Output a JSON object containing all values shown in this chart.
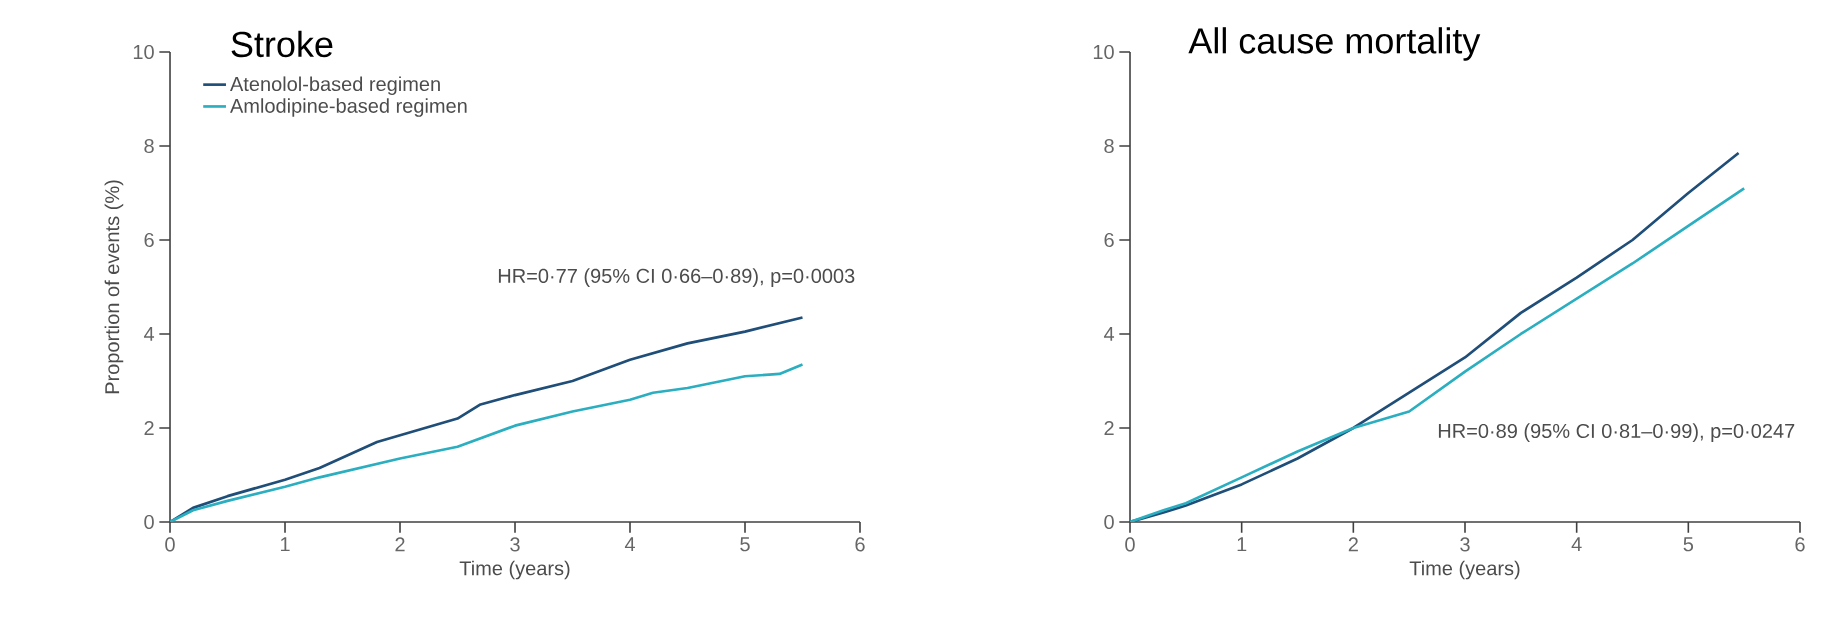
{
  "chart_data": [
    {
      "type": "line",
      "title": "Stroke",
      "ylabel": "Proportion of events (%)",
      "xlabel": "Time (years)",
      "xlim": [
        0,
        6
      ],
      "ylim": [
        0,
        10
      ],
      "xticks": [
        0,
        1,
        2,
        3,
        4,
        5,
        6
      ],
      "yticks": [
        0,
        2,
        4,
        6,
        8,
        10
      ],
      "legend": "top left",
      "marker": "none",
      "line_style": "solid",
      "annotations": [
        "HR=0·77 (95% CI 0·66–0·89), p=0·0003"
      ],
      "series": [
        {
          "name": "Atenolol-based regimen",
          "color": "#1f4e79",
          "x": [
            0,
            0.2,
            0.5,
            1,
            1.3,
            1.8,
            2.5,
            2.7,
            3,
            3.5,
            4,
            4.5,
            5,
            5.5
          ],
          "values": [
            0,
            0.3,
            0.55,
            0.9,
            1.15,
            1.7,
            2.2,
            2.5,
            2.7,
            3.0,
            3.45,
            3.8,
            4.05,
            4.35
          ]
        },
        {
          "name": "Amlodipine-based regimen",
          "color": "#2aaec0",
          "x": [
            0,
            0.2,
            0.5,
            1,
            1.3,
            2,
            2.5,
            3,
            3.5,
            4,
            4.2,
            4.5,
            5,
            5.3,
            5.5
          ],
          "values": [
            0,
            0.25,
            0.45,
            0.75,
            0.95,
            1.35,
            1.6,
            2.05,
            2.35,
            2.6,
            2.75,
            2.85,
            3.1,
            3.15,
            3.35
          ]
        }
      ]
    },
    {
      "type": "line",
      "title": "All cause mortality",
      "xlabel": "Time (years)",
      "xlim": [
        0,
        6
      ],
      "ylim": [
        0,
        10
      ],
      "xticks": [
        0,
        1,
        2,
        3,
        4,
        5,
        6
      ],
      "yticks": [
        0,
        2,
        4,
        6,
        8,
        10
      ],
      "marker": "none",
      "line_style": "solid",
      "annotations": [
        "HR=0·89 (95% CI 0·81–0·99), p=0·0247"
      ],
      "series": [
        {
          "color": "#1f4e79",
          "x": [
            0,
            0.3,
            0.5,
            1,
            1.5,
            2,
            2.5,
            3,
            3.5,
            4,
            4.5,
            5,
            5.45
          ],
          "values": [
            0,
            0.2,
            0.35,
            0.8,
            1.35,
            2.0,
            2.75,
            3.5,
            4.45,
            5.2,
            6.0,
            7.0,
            7.85
          ]
        },
        {
          "color": "#2aaec0",
          "x": [
            0,
            0.3,
            0.5,
            1,
            1.5,
            2,
            2.5,
            3,
            3.5,
            4,
            4.5,
            5,
            5.5
          ],
          "values": [
            0,
            0.25,
            0.4,
            0.95,
            1.5,
            2.0,
            2.35,
            3.2,
            4.0,
            4.75,
            5.5,
            6.3,
            7.1
          ]
        }
      ]
    }
  ]
}
